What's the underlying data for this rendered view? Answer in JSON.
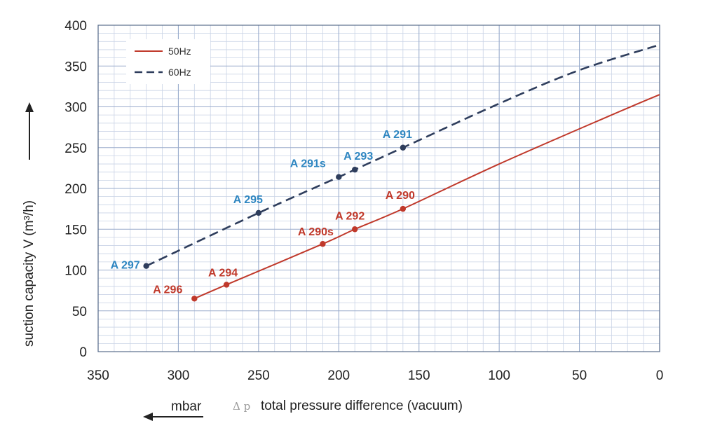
{
  "chart_data": {
    "type": "line",
    "title": "",
    "xlabel": "total pressure difference (vacuum)",
    "xlabel_symbol": "Δ p",
    "ylabel": "suction capacity V (m³/h)",
    "unit_label": "mbar",
    "x_reversed": true,
    "xlim": [
      350,
      0
    ],
    "ylim": [
      0,
      400
    ],
    "x_ticks": [
      350,
      300,
      250,
      200,
      150,
      100,
      50,
      0
    ],
    "y_ticks": [
      0,
      50,
      100,
      150,
      200,
      250,
      300,
      350,
      400
    ],
    "x_minor_step": 10,
    "y_minor_step": 10,
    "grid": true,
    "legend_position": "top-left",
    "series": [
      {
        "name": "50Hz",
        "color": "#c0392b",
        "dash": "solid",
        "x": [
          290,
          270,
          210,
          190,
          160,
          100,
          30,
          0
        ],
        "y": [
          65,
          82,
          132,
          150,
          175,
          230,
          290,
          315
        ],
        "points": [
          {
            "label": "A 296",
            "x": 290,
            "y": 65
          },
          {
            "label": "A 294",
            "x": 270,
            "y": 82
          },
          {
            "label": "A 290s",
            "x": 210,
            "y": 132
          },
          {
            "label": "A 292",
            "x": 190,
            "y": 150
          },
          {
            "label": "A 290",
            "x": 160,
            "y": 175
          }
        ]
      },
      {
        "name": "60Hz",
        "color": "#2e3d5c",
        "dash": "dashed",
        "x": [
          320,
          250,
          200,
          190,
          160,
          100,
          50,
          0
        ],
        "y": [
          105,
          170,
          214,
          223,
          250,
          304,
          345,
          376
        ],
        "points": [
          {
            "label": "A 297",
            "x": 320,
            "y": 105
          },
          {
            "label": "A 295",
            "x": 250,
            "y": 170
          },
          {
            "label": "A 291s",
            "x": 200,
            "y": 214
          },
          {
            "label": "A 293",
            "x": 190,
            "y": 223
          },
          {
            "label": "A 291",
            "x": 160,
            "y": 250
          }
        ]
      }
    ],
    "label_colors": {
      "50Hz": "#c0392b",
      "60Hz": "#2e86c1"
    }
  }
}
